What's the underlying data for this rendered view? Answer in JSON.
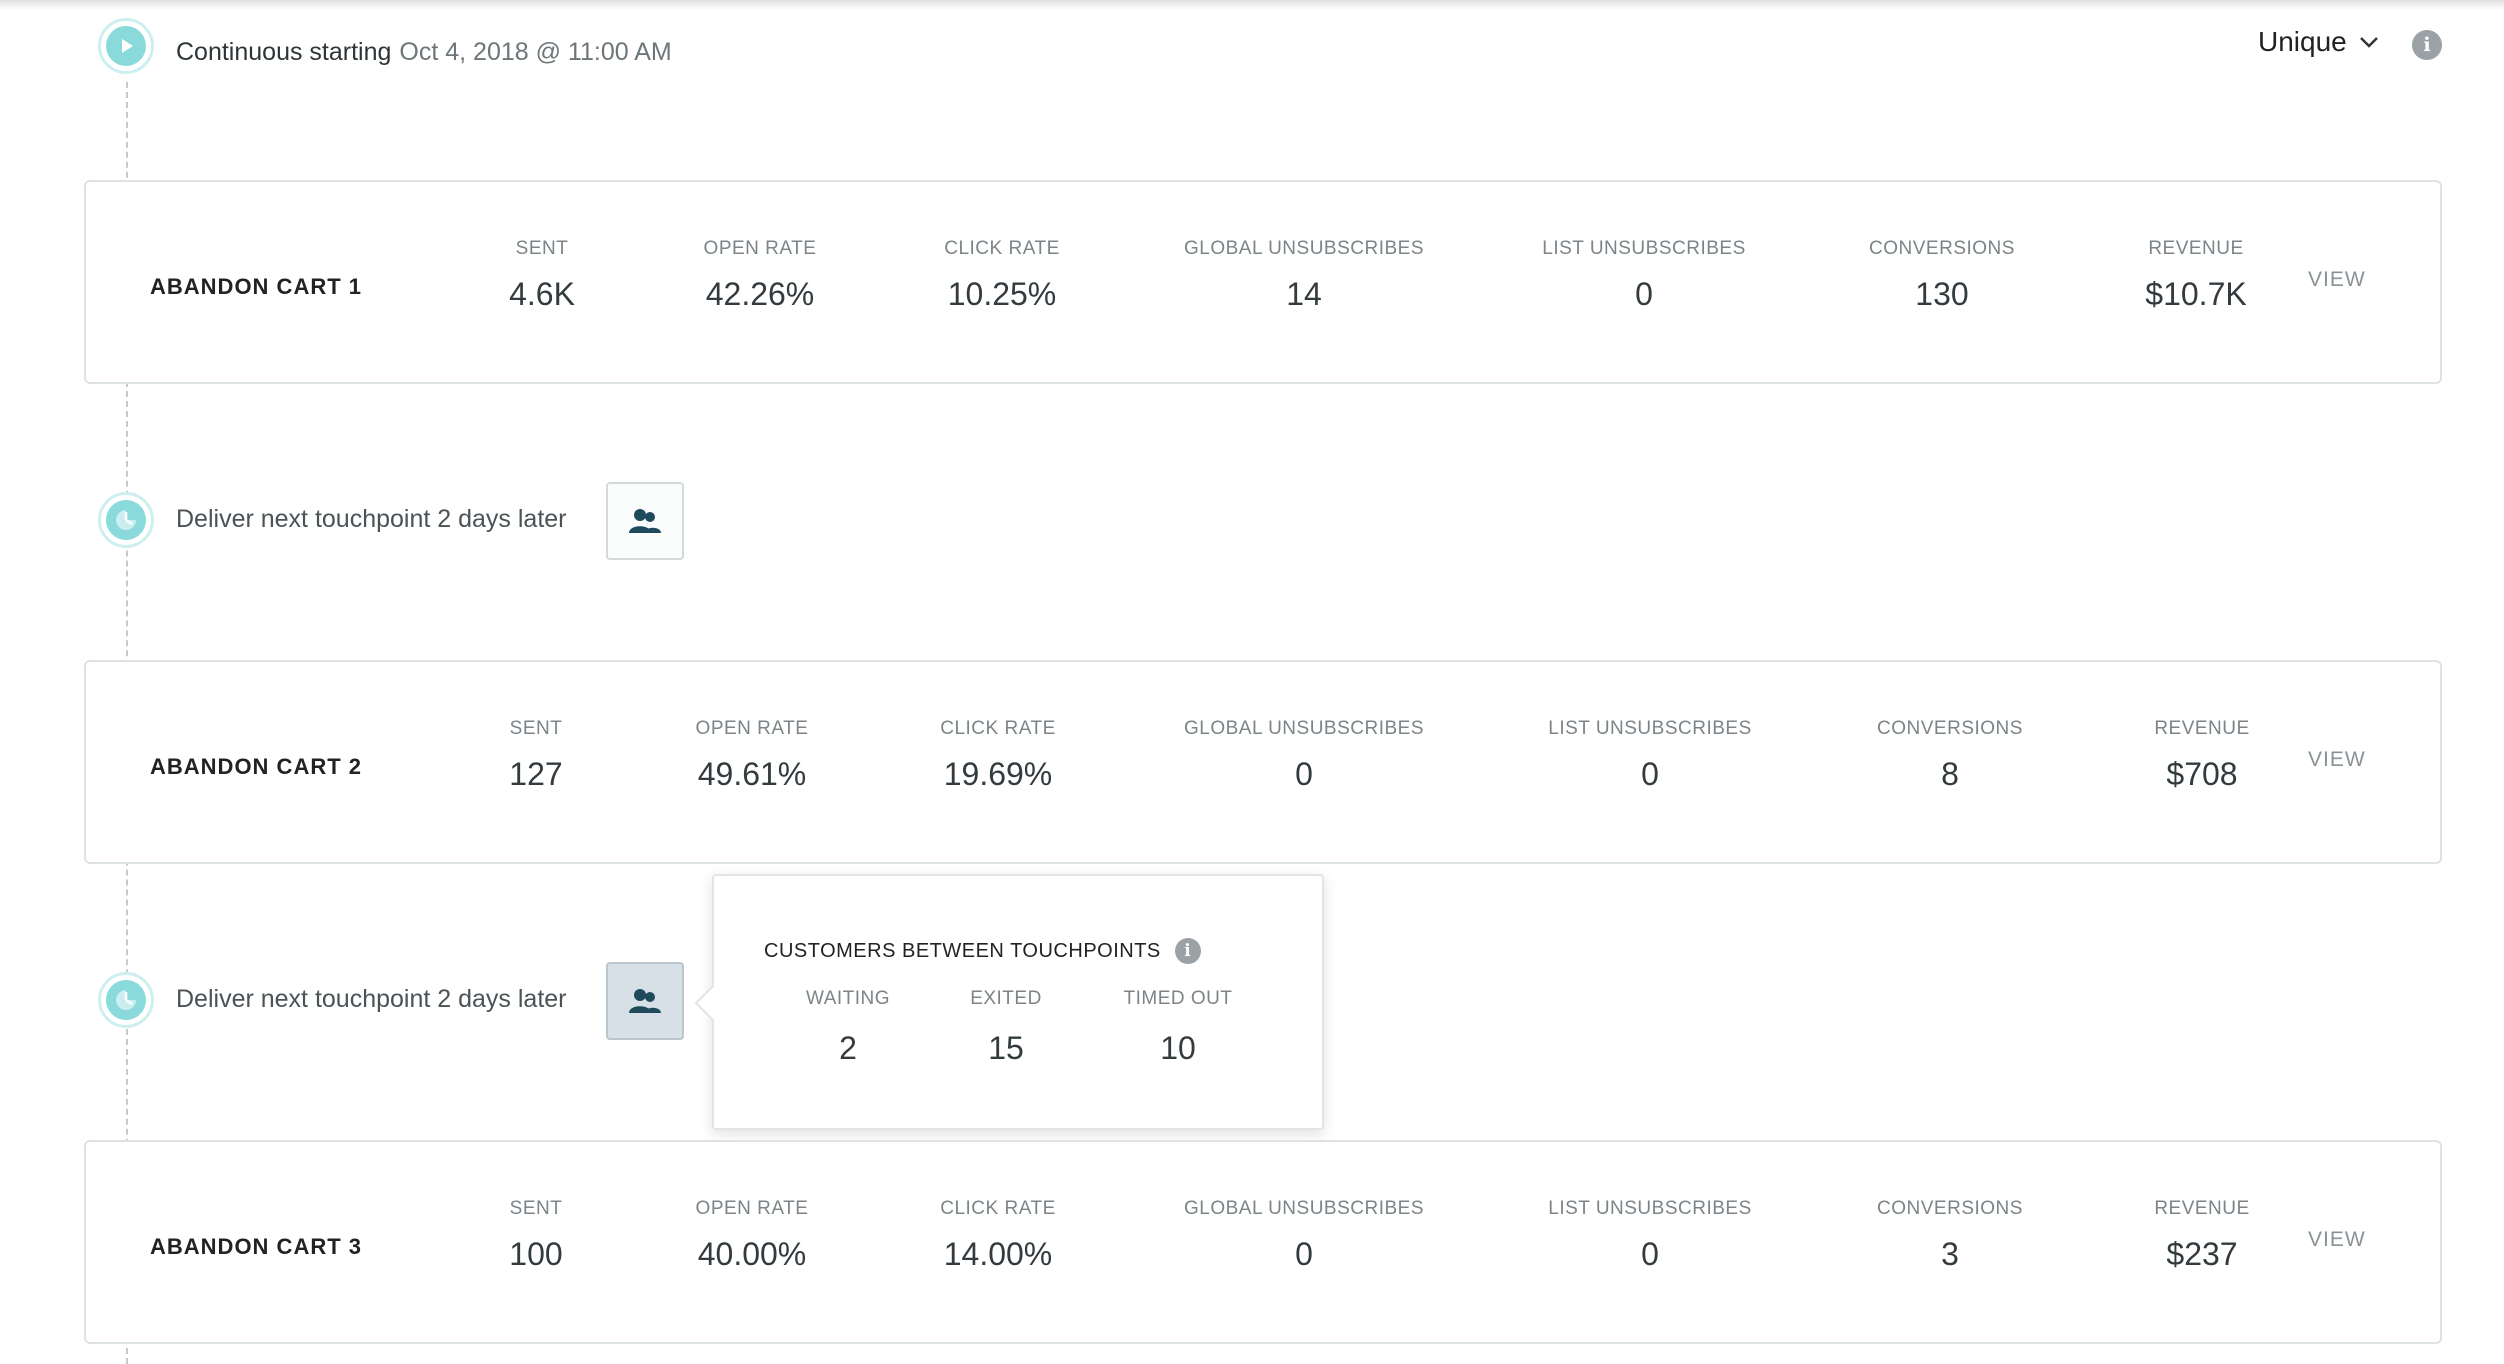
{
  "header": {
    "start_text": "Continuous starting",
    "start_date": "Oct 4, 2018 @ 11:00 AM",
    "filter_value": "Unique",
    "filter_icon": "chevron-down-icon",
    "info_icon": "info-icon"
  },
  "metric_labels": {
    "sent": "SENT",
    "open_rate": "OPEN RATE",
    "click_rate": "CLICK RATE",
    "global_unsub": "GLOBAL UNSUBSCRIBES",
    "list_unsub": "LIST UNSUBSCRIBES",
    "conversions": "CONVERSIONS",
    "revenue": "REVENUE",
    "view": "VIEW"
  },
  "cards": [
    {
      "name": "ABANDON CART 1",
      "sent": "4.6K",
      "open_rate": "42.26%",
      "click_rate": "10.25%",
      "global_unsub": "14",
      "list_unsub": "0",
      "conversions": "130",
      "revenue": "$10.7K"
    },
    {
      "name": "ABANDON CART 2",
      "sent": "127",
      "open_rate": "49.61%",
      "click_rate": "19.69%",
      "global_unsub": "0",
      "list_unsub": "0",
      "conversions": "8",
      "revenue": "$708"
    },
    {
      "name": "ABANDON CART 3",
      "sent": "100",
      "open_rate": "40.00%",
      "click_rate": "14.00%",
      "global_unsub": "0",
      "list_unsub": "0",
      "conversions": "3",
      "revenue": "$237"
    }
  ],
  "delays": [
    {
      "label": "Deliver next touchpoint 2 days later"
    },
    {
      "label": "Deliver next touchpoint 2 days later"
    }
  ],
  "popover": {
    "title": "CUSTOMERS BETWEEN TOUCHPOINTS",
    "waiting_label": "WAITING",
    "waiting_value": "2",
    "exited_label": "EXITED",
    "exited_value": "15",
    "timed_out_label": "TIMED OUT",
    "timed_out_value": "10"
  },
  "colors": {
    "accent_teal": "#8ad9db",
    "node_ring": "#cdeff0",
    "icon_dark": "#1f4a5c",
    "text_dark": "#2e3538",
    "text_muted": "#7c8488"
  }
}
